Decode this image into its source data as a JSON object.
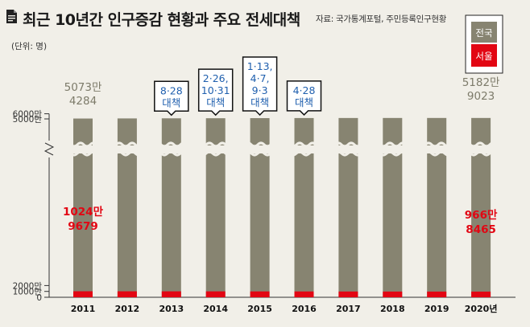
{
  "header": {
    "title": "최근 10년간 인구증감 현황과 주요 전세대책",
    "source": "자료: 국가통계포털, 주민등록인구현황",
    "unit": "(단위: 명)"
  },
  "chart_data": {
    "type": "bar",
    "stacked": true,
    "categories": [
      "2011",
      "2012",
      "2013",
      "2014",
      "2015",
      "2016",
      "2017",
      "2018",
      "2019",
      "2020년"
    ],
    "series": [
      {
        "name": "전국",
        "color": "#878471",
        "values": [
          50734284,
          50948272,
          51141463,
          51327916,
          51529338,
          51696216,
          51778544,
          51826059,
          51849861,
          51829023
        ]
      },
      {
        "name": "서울",
        "color": "#e20613",
        "values": [
          10249679,
          10195318,
          10143645,
          10103233,
          10022181,
          9930616,
          9857426,
          9765623,
          9729107,
          9668465
        ]
      }
    ],
    "yticks": [
      "6000만",
      "5000만",
      "2000만",
      "1000만",
      "0"
    ],
    "axis_break": true,
    "legend": {
      "position": "top-right",
      "items": [
        {
          "label": "전국",
          "color": "#878471"
        },
        {
          "label": "서울",
          "color": "#e20613"
        }
      ]
    },
    "annotations": {
      "first_total": [
        "5073만",
        "4284"
      ],
      "last_total": [
        "5182만",
        "9023"
      ],
      "first_seoul": [
        "1024만",
        "9679"
      ],
      "last_seoul": [
        "966만",
        "8465"
      ]
    },
    "callouts": [
      {
        "year": "2013",
        "lines": [
          "8·28",
          "대책"
        ]
      },
      {
        "year": "2014",
        "lines": [
          "2·26,",
          "10·31",
          "대책"
        ]
      },
      {
        "year": "2015",
        "lines": [
          "1·13,",
          "4·7,",
          "9·3",
          "대책"
        ]
      },
      {
        "year": "2016",
        "lines": [
          "4·28",
          "대책"
        ]
      }
    ]
  }
}
